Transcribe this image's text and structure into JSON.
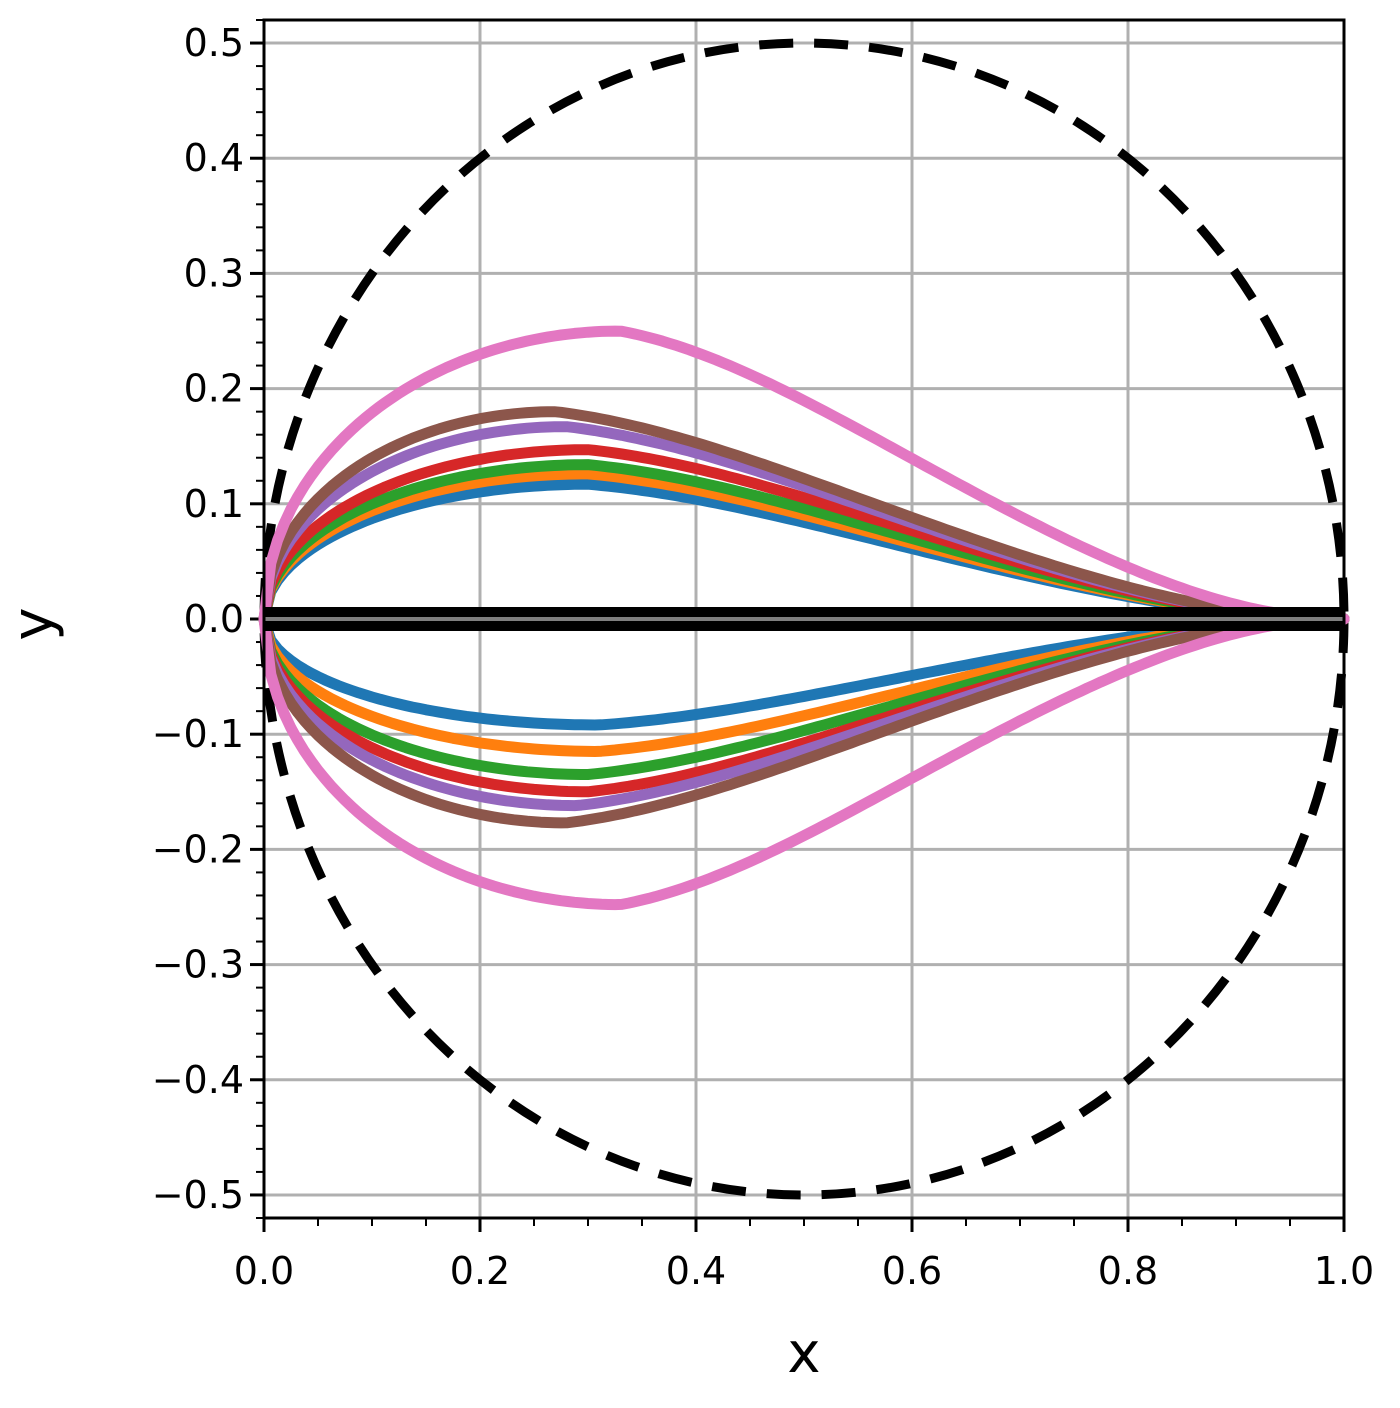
{
  "chart_data": {
    "type": "line",
    "title": "",
    "xlabel": "x",
    "ylabel": "y",
    "xlim": [
      0.0,
      1.0
    ],
    "ylim": [
      -0.52,
      0.52
    ],
    "grid": true,
    "legend": "none",
    "xticks": [
      "0.0",
      "0.2",
      "0.4",
      "0.6",
      "0.8",
      "1.0"
    ],
    "yticks": [
      "−0.5",
      "−0.4",
      "−0.3",
      "−0.2",
      "−0.1",
      "0.0",
      "0.1",
      "0.2",
      "0.3",
      "0.4",
      "0.5"
    ],
    "reference_circle": {
      "center": [
        0.5,
        0.0
      ],
      "radius": 0.5,
      "style": "dashed",
      "color": "#000000"
    },
    "series": [
      {
        "color": "#1f77b4",
        "upper_peak": [
          0.3,
          0.117
        ],
        "lower_min": [
          0.31,
          -0.092
        ]
      },
      {
        "color": "#ff7f0e",
        "upper_peak": [
          0.3,
          0.126
        ],
        "lower_min": [
          0.31,
          -0.115
        ]
      },
      {
        "color": "#2ca02c",
        "upper_peak": [
          0.3,
          0.134
        ],
        "lower_min": [
          0.3,
          -0.135
        ]
      },
      {
        "color": "#d62728",
        "upper_peak": [
          0.3,
          0.147
        ],
        "lower_min": [
          0.3,
          -0.15
        ]
      },
      {
        "color": "#9467bd",
        "upper_peak": [
          0.28,
          0.167
        ],
        "lower_min": [
          0.29,
          -0.162
        ]
      },
      {
        "color": "#8c564b",
        "upper_peak": [
          0.27,
          0.18
        ],
        "lower_min": [
          0.28,
          -0.177
        ]
      },
      {
        "color": "#e377c2",
        "upper_peak": [
          0.33,
          0.25
        ],
        "lower_min": [
          0.33,
          -0.248
        ]
      }
    ],
    "baseline": {
      "color": "#000000",
      "y": 0.0
    }
  }
}
